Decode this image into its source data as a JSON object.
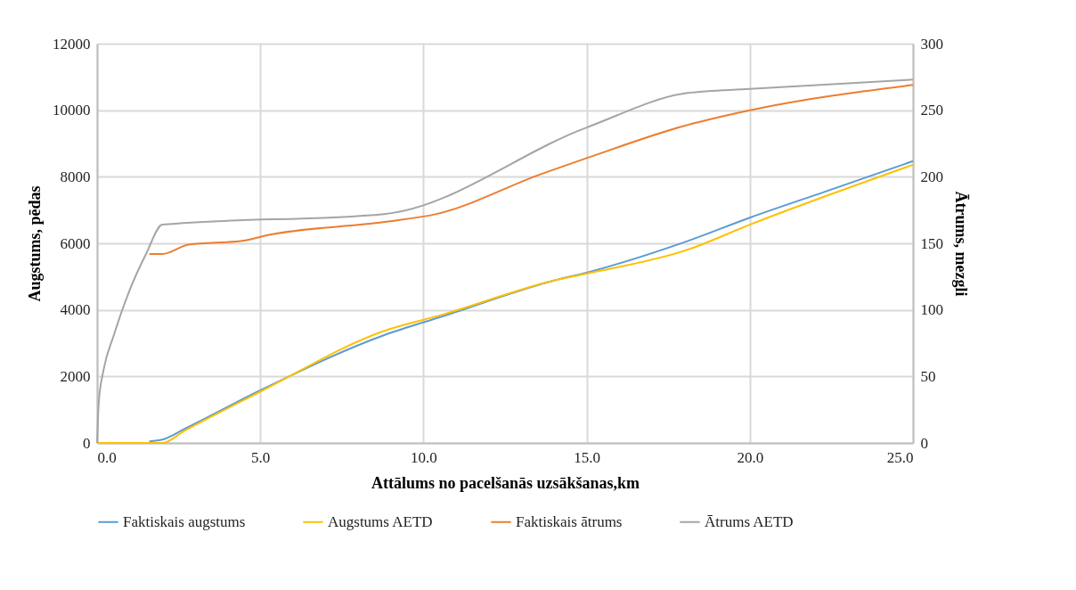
{
  "chart_data": {
    "type": "line",
    "xlabel": "Attālums no pacelšanās uzsākšanas,km",
    "ylabel": "Augstums,  pēdas",
    "y2label": "Ātrums,  mezgli",
    "xlim": [
      0,
      25
    ],
    "xticks": [
      {
        "value": 0,
        "label": "0.0"
      },
      {
        "value": 5,
        "label": "5.0"
      },
      {
        "value": 10,
        "label": "10.0"
      },
      {
        "value": 15,
        "label": "15.0"
      },
      {
        "value": 20,
        "label": "20.0"
      },
      {
        "value": 25,
        "label": "25.0"
      }
    ],
    "ylim": [
      0,
      12000
    ],
    "yticks": [
      0,
      2000,
      4000,
      6000,
      8000,
      10000,
      12000
    ],
    "y2lim": [
      0,
      300
    ],
    "y2ticks": [
      0,
      50,
      100,
      150,
      200,
      250,
      300
    ],
    "grid": true,
    "legend": "bottom",
    "marker": "none",
    "line_style": "solid",
    "series": [
      {
        "name": "Faktiskais augstums",
        "color": "#5b9bd5",
        "x": [
          1.6,
          2.0,
          2.7,
          5.0,
          8.8,
          10.6,
          14.0,
          15.0,
          18.1,
          20.0,
          22.3,
          25.0
        ],
        "values": [
          50,
          100,
          430,
          1580,
          3240,
          3810,
          4880,
          5120,
          6070,
          6770,
          7550,
          8470
        ]
      },
      {
        "name": "Augstums AETD",
        "color": "#ffc000",
        "x": [
          0,
          2.0,
          2.7,
          5.0,
          8.8,
          10.6,
          14.0,
          15.0,
          18.1,
          20.0,
          25.0
        ],
        "values": [
          0,
          0,
          380,
          1540,
          3370,
          3860,
          4880,
          5090,
          5810,
          6560,
          8360
        ]
      },
      {
        "name": "Faktiskais ātrums",
        "color": "#ed7d31",
        "axis": "y2",
        "x": [
          1.6,
          2.0,
          2.8,
          4.5,
          5.2,
          8.8,
          10.4,
          13.6,
          15.0,
          18.1,
          20.0,
          25.0
        ],
        "values": [
          142,
          142,
          149,
          152,
          156,
          166,
          172,
          202,
          214,
          239,
          250,
          269
        ]
      },
      {
        "name": "Ātrums AETD",
        "color": "#a5a5a5",
        "axis": "y2",
        "x": [
          0,
          0.05,
          0.2,
          0.5,
          1.0,
          1.5,
          2.0,
          8.8,
          15.0,
          18.1,
          20.0,
          25.0
        ],
        "values": [
          0,
          30,
          55,
          80,
          115,
          142,
          164,
          172,
          237,
          263,
          266,
          273
        ]
      }
    ]
  }
}
